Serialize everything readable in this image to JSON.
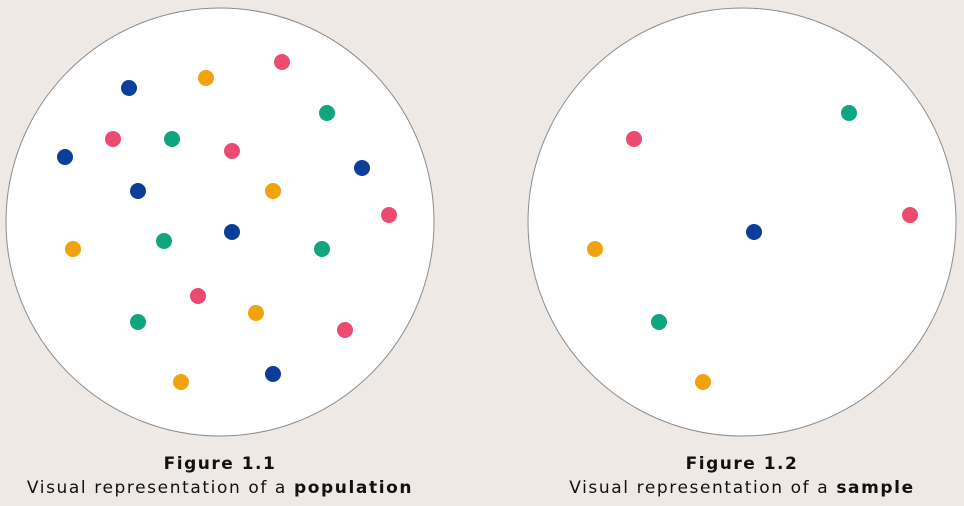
{
  "colors": {
    "blue": "#0a3e9a",
    "orange": "#f0a30c",
    "pink": "#ec4a6e",
    "green": "#0fa67f",
    "circle_fill": "#ffffff",
    "circle_stroke": "#8c8c8c",
    "background": "#efe9e6"
  },
  "figures": [
    {
      "title": "Figure 1.1",
      "caption_prefix": "Visual representation of a ",
      "caption_bold": "population"
    },
    {
      "title": "Figure 1.2",
      "caption_prefix": "Visual representation of a ",
      "caption_bold": "sample"
    }
  ]
}
